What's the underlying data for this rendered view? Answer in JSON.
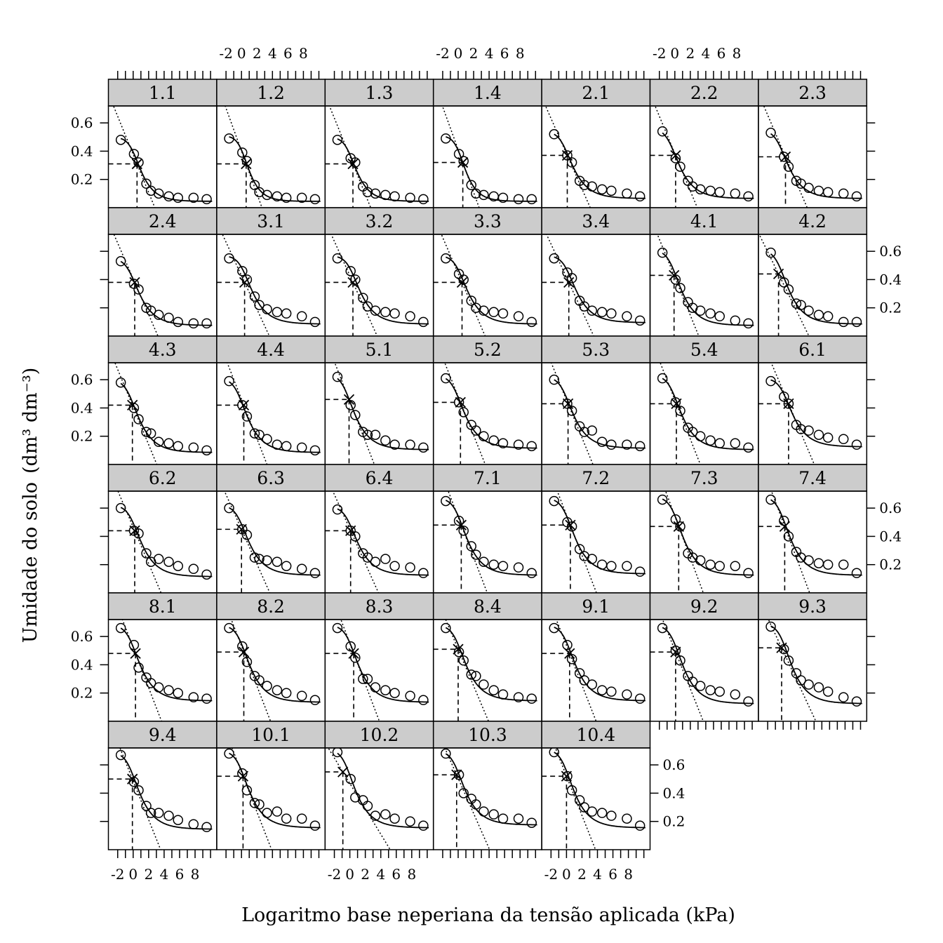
{
  "chart_data": {
    "type": "scatter",
    "layout": "lattice 7 columns x 6 rows",
    "xlabel": "Logaritmo base neperiana da tensão aplicada (kPa)",
    "ylabel": "Umidade do solo",
    "ylabel_units": "(dm³ dm⁻³)",
    "xlim": [
      -3.2,
      10.8
    ],
    "ylim": [
      0.0,
      0.72
    ],
    "x_ticks": [
      -2,
      0,
      2,
      4,
      6,
      8
    ],
    "y_ticks": [
      0.2,
      0.4,
      0.6
    ],
    "y_tick_labels": [
      "0.2",
      "0.4",
      "0.6"
    ],
    "x_observed": [
      -1.6,
      0.1,
      0.7,
      1.7,
      2.3,
      3.3,
      4.6,
      5.8,
      7.8,
      9.5
    ],
    "legend_markers": {
      "observed": "circle",
      "inflection_point": "x",
      "tangent_line": "dotted",
      "projection": "dashed"
    },
    "panels": [
      {
        "label": "1.1",
        "y": [
          0.48,
          0.38,
          0.32,
          0.17,
          0.12,
          0.1,
          0.08,
          0.07,
          0.07,
          0.06
        ],
        "inflection": [
          0.5,
          0.31
        ]
      },
      {
        "label": "1.2",
        "y": [
          0.49,
          0.39,
          0.33,
          0.16,
          0.11,
          0.09,
          0.08,
          0.07,
          0.07,
          0.06
        ],
        "inflection": [
          0.6,
          0.31
        ]
      },
      {
        "label": "1.3",
        "y": [
          0.48,
          0.35,
          0.32,
          0.15,
          0.11,
          0.1,
          0.09,
          0.08,
          0.07,
          0.06
        ],
        "inflection": [
          0.4,
          0.31
        ]
      },
      {
        "label": "1.4",
        "y": [
          0.49,
          0.38,
          0.33,
          0.16,
          0.1,
          0.09,
          0.08,
          0.07,
          0.06,
          0.06
        ],
        "inflection": [
          0.6,
          0.32
        ]
      },
      {
        "label": "2.1",
        "y": [
          0.52,
          0.37,
          0.32,
          0.19,
          0.16,
          0.15,
          0.13,
          0.12,
          0.1,
          0.08
        ],
        "inflection": [
          0.1,
          0.37
        ]
      },
      {
        "label": "2.2",
        "y": [
          0.54,
          0.35,
          0.29,
          0.19,
          0.15,
          0.13,
          0.12,
          0.11,
          0.1,
          0.08
        ],
        "inflection": [
          0.1,
          0.37
        ]
      },
      {
        "label": "2.3",
        "y": [
          0.53,
          0.36,
          0.29,
          0.19,
          0.17,
          0.14,
          0.12,
          0.11,
          0.1,
          0.08
        ],
        "inflection": [
          0.3,
          0.36
        ]
      },
      {
        "label": "2.4",
        "y": [
          0.53,
          0.37,
          0.33,
          0.2,
          0.18,
          0.15,
          0.13,
          0.1,
          0.09,
          0.09
        ],
        "inflection": [
          0.2,
          0.38
        ]
      },
      {
        "label": "3.1",
        "y": [
          0.55,
          0.46,
          0.4,
          0.28,
          0.22,
          0.19,
          0.17,
          0.16,
          0.14,
          0.1
        ],
        "inflection": [
          0.4,
          0.38
        ]
      },
      {
        "label": "3.2",
        "y": [
          0.55,
          0.46,
          0.4,
          0.27,
          0.21,
          0.18,
          0.17,
          0.16,
          0.14,
          0.1
        ],
        "inflection": [
          0.4,
          0.38
        ]
      },
      {
        "label": "3.3",
        "y": [
          0.55,
          0.44,
          0.4,
          0.25,
          0.2,
          0.18,
          0.17,
          0.16,
          0.14,
          0.1
        ],
        "inflection": [
          0.5,
          0.38
        ]
      },
      {
        "label": "3.4",
        "y": [
          0.55,
          0.45,
          0.41,
          0.25,
          0.21,
          0.18,
          0.17,
          0.16,
          0.14,
          0.11
        ],
        "inflection": [
          0.3,
          0.38
        ]
      },
      {
        "label": "4.1",
        "y": [
          0.59,
          0.4,
          0.34,
          0.24,
          0.2,
          0.18,
          0.16,
          0.14,
          0.11,
          0.09
        ],
        "inflection": [
          -0.1,
          0.43
        ]
      },
      {
        "label": "4.2",
        "y": [
          0.59,
          0.38,
          0.33,
          0.23,
          0.22,
          0.18,
          0.15,
          0.14,
          0.1,
          0.1
        ],
        "inflection": [
          -0.6,
          0.44
        ]
      },
      {
        "label": "4.3",
        "y": [
          0.58,
          0.4,
          0.32,
          0.23,
          0.22,
          0.16,
          0.15,
          0.13,
          0.12,
          0.1
        ],
        "inflection": [
          -0.1,
          0.42
        ]
      },
      {
        "label": "4.4",
        "y": [
          0.59,
          0.42,
          0.34,
          0.22,
          0.21,
          0.18,
          0.14,
          0.13,
          0.12,
          0.1
        ],
        "inflection": [
          0.3,
          0.42
        ]
      },
      {
        "label": "5.1",
        "y": [
          0.62,
          0.42,
          0.35,
          0.23,
          0.21,
          0.21,
          0.17,
          0.14,
          0.14,
          0.12
        ],
        "inflection": [
          -0.1,
          0.46
        ]
      },
      {
        "label": "5.2",
        "y": [
          0.61,
          0.44,
          0.37,
          0.28,
          0.24,
          0.2,
          0.17,
          0.15,
          0.14,
          0.13
        ],
        "inflection": [
          0.3,
          0.44
        ]
      },
      {
        "label": "5.3",
        "y": [
          0.6,
          0.43,
          0.38,
          0.27,
          0.23,
          0.24,
          0.16,
          0.14,
          0.14,
          0.13
        ],
        "inflection": [
          0.2,
          0.43
        ]
      },
      {
        "label": "5.4",
        "y": [
          0.61,
          0.44,
          0.38,
          0.26,
          0.23,
          0.2,
          0.17,
          0.15,
          0.15,
          0.12
        ],
        "inflection": [
          0.2,
          0.43
        ]
      },
      {
        "label": "6.1",
        "y": [
          0.59,
          0.48,
          0.43,
          0.28,
          0.25,
          0.24,
          0.21,
          0.19,
          0.18,
          0.14
        ],
        "inflection": [
          0.7,
          0.43
        ]
      },
      {
        "label": "6.2",
        "y": [
          0.6,
          0.44,
          0.42,
          0.28,
          0.22,
          0.24,
          0.22,
          0.19,
          0.17,
          0.13
        ],
        "inflection": [
          0.2,
          0.44
        ]
      },
      {
        "label": "6.3",
        "y": [
          0.6,
          0.45,
          0.41,
          0.25,
          0.24,
          0.23,
          0.22,
          0.19,
          0.17,
          0.14
        ],
        "inflection": [
          0.0,
          0.45
        ]
      },
      {
        "label": "6.4",
        "y": [
          0.59,
          0.44,
          0.4,
          0.28,
          0.25,
          0.22,
          0.24,
          0.19,
          0.18,
          0.14
        ],
        "inflection": [
          0.1,
          0.44
        ]
      },
      {
        "label": "7.1",
        "y": [
          0.65,
          0.51,
          0.44,
          0.33,
          0.27,
          0.22,
          0.2,
          0.19,
          0.18,
          0.14
        ],
        "inflection": [
          0.4,
          0.48
        ]
      },
      {
        "label": "7.2",
        "y": [
          0.65,
          0.5,
          0.47,
          0.31,
          0.26,
          0.24,
          0.2,
          0.19,
          0.19,
          0.15
        ],
        "inflection": [
          0.5,
          0.48
        ]
      },
      {
        "label": "7.3",
        "y": [
          0.66,
          0.52,
          0.47,
          0.28,
          0.25,
          0.23,
          0.2,
          0.19,
          0.19,
          0.14
        ],
        "inflection": [
          0.5,
          0.47
        ]
      },
      {
        "label": "7.4",
        "y": [
          0.66,
          0.51,
          0.4,
          0.29,
          0.25,
          0.23,
          0.21,
          0.2,
          0.2,
          0.14
        ],
        "inflection": [
          0.2,
          0.47
        ]
      },
      {
        "label": "8.1",
        "y": [
          0.66,
          0.54,
          0.38,
          0.31,
          0.27,
          0.24,
          0.22,
          0.2,
          0.17,
          0.16
        ],
        "inflection": [
          0.3,
          0.48
        ]
      },
      {
        "label": "8.2",
        "y": [
          0.66,
          0.53,
          0.42,
          0.32,
          0.29,
          0.25,
          0.22,
          0.2,
          0.18,
          0.15
        ],
        "inflection": [
          0.3,
          0.49
        ]
      },
      {
        "label": "8.3",
        "y": [
          0.66,
          0.53,
          0.45,
          0.3,
          0.3,
          0.24,
          0.22,
          0.2,
          0.18,
          0.15
        ],
        "inflection": [
          0.5,
          0.48
        ]
      },
      {
        "label": "8.4",
        "y": [
          0.66,
          0.49,
          0.43,
          0.33,
          0.32,
          0.26,
          0.22,
          0.19,
          0.17,
          0.16
        ],
        "inflection": [
          0.0,
          0.51
        ]
      },
      {
        "label": "9.1",
        "y": [
          0.66,
          0.54,
          0.44,
          0.34,
          0.29,
          0.26,
          0.22,
          0.21,
          0.19,
          0.16
        ],
        "inflection": [
          0.4,
          0.48
        ]
      },
      {
        "label": "9.2",
        "y": [
          0.66,
          0.5,
          0.43,
          0.32,
          0.28,
          0.25,
          0.22,
          0.21,
          0.19,
          0.14
        ],
        "inflection": [
          0.1,
          0.49
        ]
      },
      {
        "label": "9.3",
        "y": [
          0.67,
          0.51,
          0.43,
          0.34,
          0.29,
          0.26,
          0.24,
          0.21,
          0.17,
          0.14
        ],
        "inflection": [
          -0.2,
          0.52
        ]
      },
      {
        "label": "9.4",
        "y": [
          0.67,
          0.48,
          0.42,
          0.31,
          0.26,
          0.26,
          0.24,
          0.21,
          0.18,
          0.16
        ],
        "inflection": [
          -0.1,
          0.5
        ]
      },
      {
        "label": "10.1",
        "y": [
          0.68,
          0.54,
          0.42,
          0.33,
          0.32,
          0.26,
          0.27,
          0.22,
          0.22,
          0.17
        ],
        "inflection": [
          0.2,
          0.52
        ]
      },
      {
        "label": "10.2",
        "y": [
          0.69,
          0.5,
          0.37,
          0.35,
          0.31,
          0.24,
          0.25,
          0.22,
          0.2,
          0.17
        ],
        "inflection": [
          -0.9,
          0.55
        ]
      },
      {
        "label": "10.3",
        "y": [
          0.68,
          0.53,
          0.4,
          0.36,
          0.32,
          0.27,
          0.25,
          0.22,
          0.22,
          0.19
        ],
        "inflection": [
          -0.2,
          0.53
        ]
      },
      {
        "label": "10.4",
        "y": [
          0.69,
          0.52,
          0.42,
          0.35,
          0.3,
          0.27,
          0.26,
          0.24,
          0.22,
          0.17
        ],
        "inflection": [
          0.0,
          0.52
        ]
      }
    ]
  }
}
